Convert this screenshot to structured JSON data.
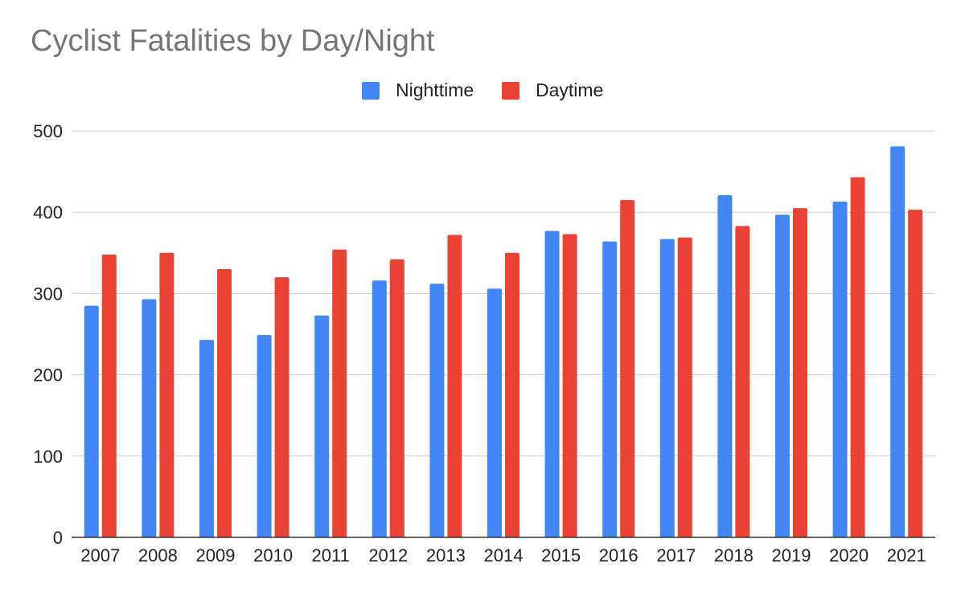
{
  "chart_data": {
    "type": "bar",
    "title": "Cyclist Fatalities by Day/Night",
    "xlabel": "",
    "ylabel": "",
    "categories": [
      "2007",
      "2008",
      "2009",
      "2010",
      "2011",
      "2012",
      "2013",
      "2014",
      "2015",
      "2016",
      "2017",
      "2018",
      "2019",
      "2020",
      "2021"
    ],
    "series": [
      {
        "name": "Nighttime",
        "color": "#4285f4",
        "values": [
          285,
          293,
          243,
          249,
          273,
          316,
          312,
          306,
          377,
          364,
          367,
          421,
          397,
          413,
          481
        ]
      },
      {
        "name": "Daytime",
        "color": "#ea4335",
        "values": [
          348,
          350,
          330,
          320,
          354,
          342,
          372,
          350,
          373,
          415,
          369,
          383,
          405,
          443,
          403
        ]
      }
    ],
    "ylim": [
      0,
      500
    ],
    "yticks": [
      0,
      100,
      200,
      300,
      400,
      500
    ],
    "grid": true,
    "legend_position": "top-center"
  }
}
